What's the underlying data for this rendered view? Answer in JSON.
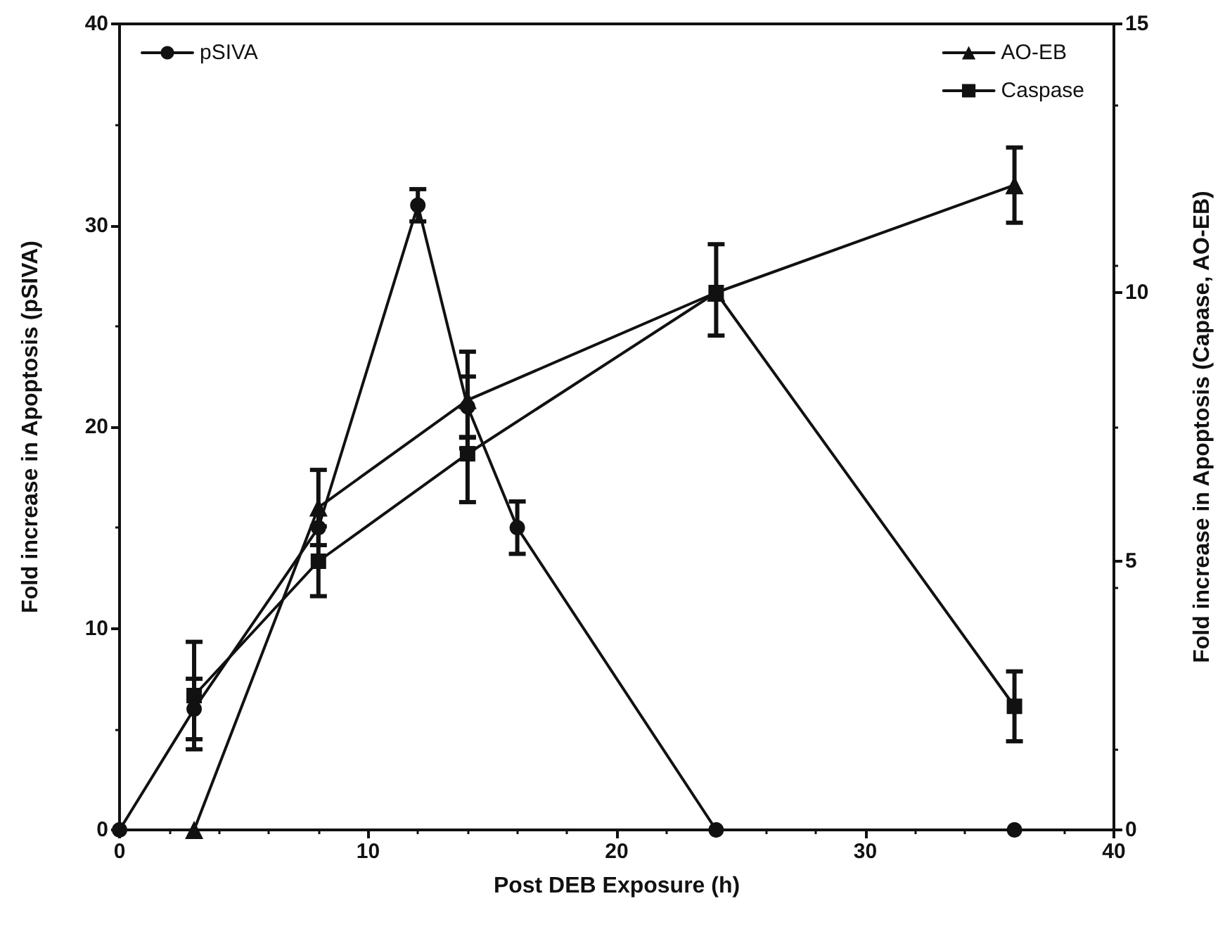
{
  "chart_data": {
    "type": "line",
    "xlabel": "Post DEB Exposure (h)",
    "ylabel": "Fold increase in Apoptosis (pSIVA)",
    "y2label": "Fold increase in Apoptosis (Capase, AO-EB)",
    "xlim": [
      0,
      40
    ],
    "xticks": [
      0,
      10,
      20,
      30,
      40
    ],
    "ylim": [
      0,
      40
    ],
    "yticks": [
      0,
      10,
      20,
      30,
      40
    ],
    "y2lim": [
      0,
      15
    ],
    "y2ticks": [
      0,
      5,
      10,
      15
    ],
    "grid": false,
    "legend": "top",
    "line_style": "solid",
    "series": [
      {
        "name": "pSIVA",
        "color": "#111111",
        "marker": "circle",
        "x": [
          0,
          3,
          8,
          12,
          14,
          16,
          24,
          36
        ],
        "values": [
          0,
          6,
          15,
          31,
          21,
          15,
          0,
          0
        ],
        "errors": [
          null,
          1.5,
          null,
          0.8,
          1.5,
          1.3,
          null,
          null
        ]
      },
      {
        "name": "AO-EB",
        "color": "#111111",
        "marker": "triangle",
        "axis": "y2",
        "x": [
          3,
          8,
          14,
          24,
          36
        ],
        "values": [
          0,
          6,
          8,
          10,
          12
        ],
        "errors": [
          null,
          0.7,
          0.9,
          null,
          0.7
        ]
      },
      {
        "name": "Caspase",
        "color": "#111111",
        "marker": "square",
        "axis": "y2",
        "x": [
          3,
          8,
          14,
          24,
          36
        ],
        "values": [
          2.5,
          5,
          7,
          10,
          2.3
        ],
        "errors": [
          1,
          0.65,
          [
            6.1,
            7.3
          ],
          [
            9.2,
            10.9
          ],
          0.65
        ]
      }
    ]
  }
}
